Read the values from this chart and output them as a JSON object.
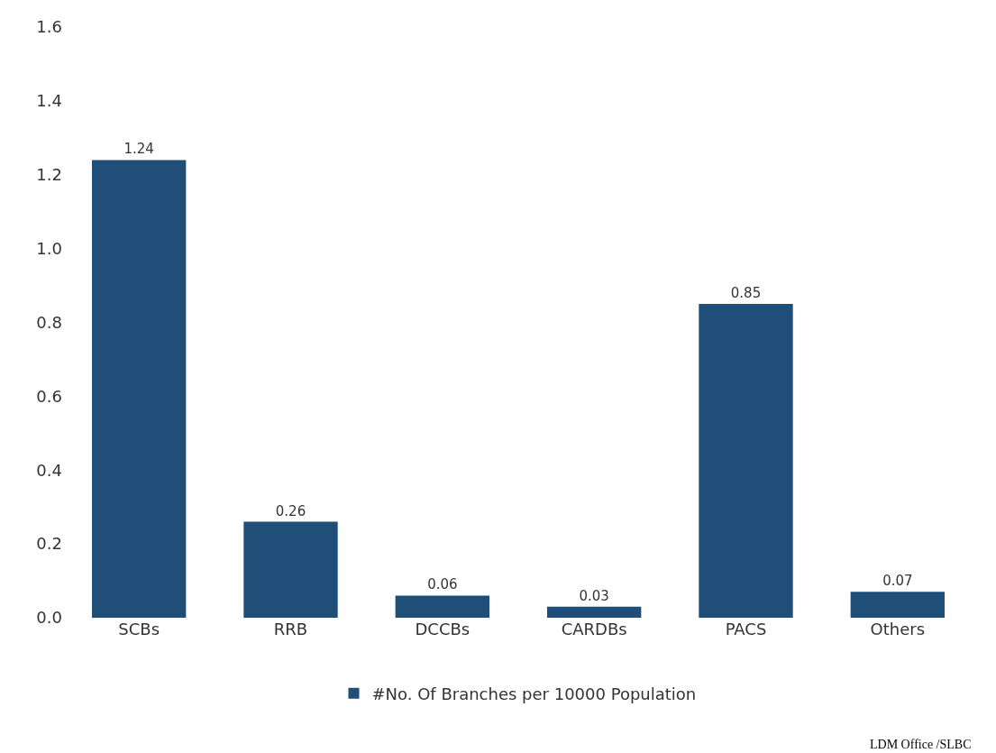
{
  "chart_data": {
    "type": "bar",
    "categories": [
      "SCBs",
      "RRB",
      "DCCBs",
      "CARDBs",
      "PACS",
      "Others"
    ],
    "series": [
      {
        "name": "#No. Of Branches per 10000 Population",
        "color": "#1f4e79",
        "values": [
          1.24,
          0.26,
          0.06,
          0.03,
          0.85,
          0.07
        ]
      }
    ],
    "ylim": [
      0,
      1.6
    ],
    "yticks": [
      {
        "value": 0,
        "label": "0.0"
      },
      {
        "value": 0.2,
        "label": "0.2"
      },
      {
        "value": 0.4,
        "label": "0.4"
      },
      {
        "value": 0.6,
        "label": "0.6"
      },
      {
        "value": 0.8,
        "label": "0.8"
      },
      {
        "value": 1.0,
        "label": "1.0"
      },
      {
        "value": 1.2,
        "label": "1.2"
      },
      {
        "value": 1.4,
        "label": "1.4"
      },
      {
        "value": 1.6,
        "label": "1.6"
      }
    ],
    "data_labels": true,
    "legend": "bottom",
    "annotations": [
      "LDM Office /SLBC"
    ]
  }
}
